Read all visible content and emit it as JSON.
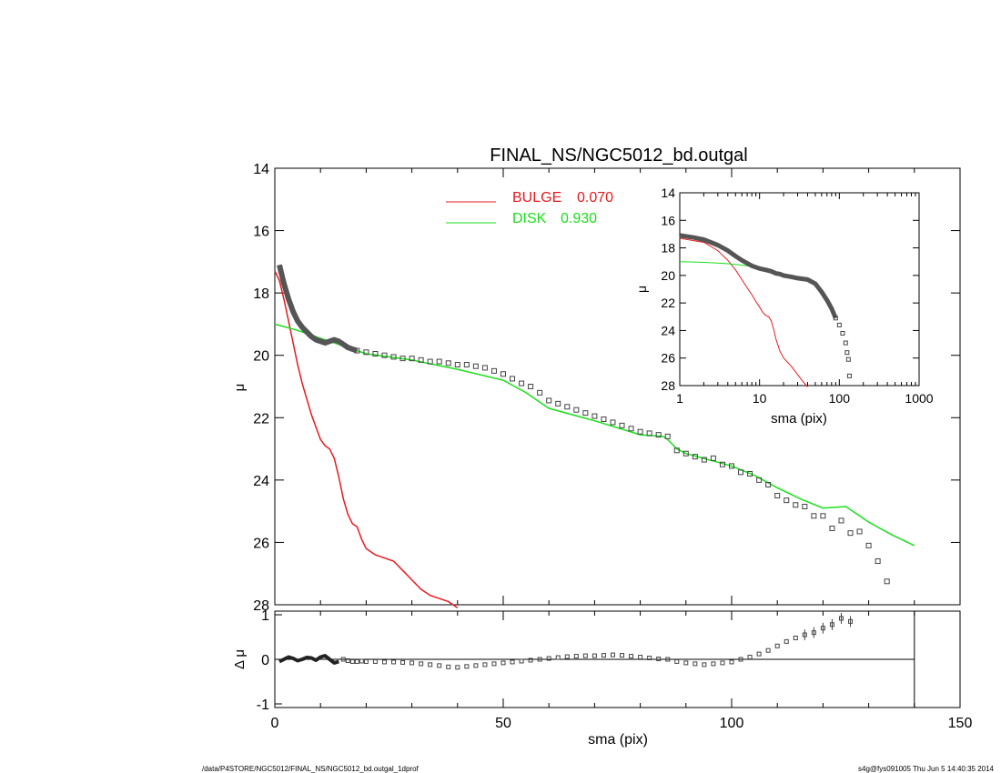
{
  "title": "FINAL_NS/NGC5012_bd.outgal",
  "footer": {
    "left": "/data/P4STORE/NGC5012/FINAL_NS/NGC5012_bd.outgal_1dprof",
    "right": "s4g@fys091005  Thu Jun  5 14:40:35 2014"
  },
  "chart_data": [
    {
      "type": "line",
      "panel": "main",
      "ylabel": "μ",
      "xlim": [
        0,
        150
      ],
      "ylim": [
        28,
        14
      ],
      "yticks": [
        14,
        16,
        18,
        20,
        22,
        24,
        26,
        28
      ],
      "legend": [
        {
          "label": "BULGE",
          "value": "0.070",
          "color": "#e8191e"
        },
        {
          "label": "DISK",
          "value": "0.930",
          "color": "#19e019"
        }
      ],
      "series": [
        {
          "name": "BULGE 0.070",
          "color": "#e8191e",
          "x": [
            0,
            1,
            2,
            3,
            4,
            5,
            6,
            7,
            8,
            9,
            10,
            11,
            12,
            13,
            14,
            15,
            16,
            17,
            18,
            19,
            20,
            22,
            24,
            26,
            28,
            30,
            32,
            34,
            36,
            38,
            40
          ],
          "y": [
            17.3,
            17.6,
            18.2,
            18.9,
            19.6,
            20.3,
            20.9,
            21.4,
            21.9,
            22.3,
            22.7,
            22.9,
            23.0,
            23.3,
            23.9,
            24.6,
            25.1,
            25.4,
            25.5,
            25.9,
            26.2,
            26.4,
            26.5,
            26.6,
            26.9,
            27.2,
            27.5,
            27.7,
            27.8,
            27.9,
            28.1
          ]
        },
        {
          "name": "DISK 0.930",
          "color": "#19e019",
          "x": [
            0,
            5,
            10,
            15,
            20,
            30,
            40,
            50,
            55,
            60,
            70,
            80,
            85,
            86,
            88,
            90,
            95,
            100,
            105,
            110,
            115,
            120,
            125,
            130,
            135,
            140
          ],
          "y": [
            19.0,
            19.2,
            19.45,
            19.7,
            19.95,
            20.15,
            20.45,
            20.8,
            21.2,
            21.7,
            22.1,
            22.55,
            22.6,
            22.7,
            23.0,
            23.15,
            23.35,
            23.55,
            23.85,
            24.25,
            24.6,
            24.9,
            24.85,
            25.35,
            25.75,
            26.1
          ]
        },
        {
          "name": "data",
          "marker": "square",
          "x": [
            18,
            20,
            22,
            24,
            26,
            28,
            30,
            32,
            34,
            36,
            38,
            40,
            42,
            44,
            46,
            48,
            50,
            52,
            54,
            56,
            58,
            60,
            62,
            64,
            66,
            68,
            70,
            72,
            74,
            76,
            78,
            80,
            82,
            84,
            86,
            88,
            90,
            92,
            94,
            96,
            98,
            100,
            102,
            104,
            106,
            108,
            110,
            112,
            114,
            116,
            118,
            120,
            122,
            124,
            126,
            128,
            130,
            132,
            134
          ],
          "y": [
            19.85,
            19.9,
            19.95,
            20.0,
            20.05,
            20.1,
            20.1,
            20.15,
            20.2,
            20.2,
            20.25,
            20.3,
            20.3,
            20.35,
            20.4,
            20.5,
            20.6,
            20.75,
            20.9,
            21.0,
            21.2,
            21.45,
            21.55,
            21.65,
            21.75,
            21.85,
            21.95,
            22.05,
            22.15,
            22.25,
            22.35,
            22.45,
            22.5,
            22.55,
            22.6,
            23.05,
            23.15,
            23.25,
            23.35,
            23.3,
            23.5,
            23.55,
            23.75,
            23.8,
            24.0,
            24.15,
            24.5,
            24.65,
            24.8,
            24.85,
            25.15,
            25.15,
            25.55,
            25.3,
            25.7,
            25.65,
            26.1,
            26.6,
            27.25
          ]
        }
      ]
    },
    {
      "type": "line",
      "panel": "inset",
      "xlabel": "sma (pix)",
      "ylabel": "μ",
      "xscale": "log",
      "xlim": [
        1,
        1000
      ],
      "ylim": [
        28,
        14
      ],
      "xticks": [
        1,
        10,
        100,
        1000
      ],
      "yticks": [
        14,
        16,
        18,
        20,
        22,
        24,
        26,
        28
      ],
      "series": [
        {
          "name": "BULGE",
          "color": "#e8191e",
          "x": [
            1,
            2,
            3,
            4,
            5,
            6,
            7,
            8,
            9,
            10,
            11,
            12,
            13,
            14,
            15,
            16,
            18,
            20,
            25,
            30,
            35,
            40
          ],
          "y": [
            17.3,
            17.6,
            18.2,
            18.9,
            19.6,
            20.3,
            20.9,
            21.4,
            21.9,
            22.3,
            22.7,
            22.9,
            23.0,
            23.3,
            23.9,
            24.6,
            25.5,
            26.0,
            26.6,
            27.2,
            27.7,
            28.1
          ]
        },
        {
          "name": "DISK",
          "color": "#19e019",
          "x": [
            1,
            2,
            3,
            4,
            5,
            6,
            8,
            10
          ],
          "y": [
            19.0,
            19.05,
            19.1,
            19.15,
            19.2,
            19.25,
            19.35,
            19.45
          ]
        },
        {
          "name": "data",
          "marker": "square",
          "x": [
            1,
            1.5,
            2,
            3,
            4,
            5,
            6,
            8,
            10,
            12,
            14,
            16,
            18,
            20,
            25,
            30,
            40,
            50,
            60,
            70,
            80,
            90,
            100,
            110,
            120,
            125,
            130,
            134
          ],
          "y": [
            17.1,
            17.25,
            17.4,
            17.8,
            18.2,
            18.6,
            18.9,
            19.3,
            19.5,
            19.6,
            19.7,
            19.85,
            19.9,
            20.0,
            20.1,
            20.2,
            20.3,
            20.6,
            21.2,
            21.8,
            22.4,
            23.1,
            23.6,
            24.2,
            24.9,
            25.6,
            26.1,
            27.3
          ]
        }
      ]
    },
    {
      "type": "scatter",
      "panel": "residual",
      "xlabel": "sma (pix)",
      "ylabel": "Δ μ",
      "xlim": [
        0,
        150
      ],
      "ylim": [
        -1,
        1
      ],
      "xticks": [
        0,
        50,
        100,
        150
      ],
      "yticks": [
        -1,
        0,
        1
      ],
      "series": [
        {
          "name": "residual",
          "marker": "square",
          "x": [
            1,
            2,
            3,
            4,
            5,
            6,
            7,
            8,
            9,
            10,
            11,
            12,
            13,
            14,
            15,
            16,
            17,
            18,
            19,
            20,
            22,
            24,
            26,
            28,
            30,
            32,
            34,
            36,
            38,
            40,
            42,
            44,
            46,
            48,
            50,
            52,
            54,
            56,
            58,
            60,
            62,
            64,
            66,
            68,
            70,
            72,
            74,
            76,
            78,
            80,
            82,
            84,
            86,
            88,
            90,
            92,
            94,
            96,
            98,
            100,
            102,
            104,
            106,
            108,
            110,
            112,
            114,
            116,
            118,
            120,
            122,
            124,
            126
          ],
          "y": [
            -0.05,
            0.0,
            0.05,
            0.02,
            -0.03,
            0.0,
            0.04,
            0.03,
            -0.02,
            0.05,
            0.08,
            0.0,
            -0.08,
            -0.05,
            0.0,
            -0.03,
            -0.05,
            -0.05,
            -0.04,
            -0.05,
            -0.05,
            -0.06,
            -0.06,
            -0.07,
            -0.08,
            -0.1,
            -0.12,
            -0.14,
            -0.17,
            -0.18,
            -0.16,
            -0.14,
            -0.12,
            -0.1,
            -0.08,
            -0.06,
            -0.04,
            -0.02,
            0.0,
            0.02,
            0.04,
            0.06,
            0.07,
            0.08,
            0.08,
            0.09,
            0.1,
            0.09,
            0.07,
            0.05,
            0.03,
            0.01,
            0.0,
            -0.05,
            -0.08,
            -0.1,
            -0.12,
            -0.1,
            -0.08,
            -0.06,
            0.0,
            0.05,
            0.12,
            0.2,
            0.3,
            0.4,
            0.48,
            0.55,
            0.6,
            0.7,
            0.78,
            0.92,
            0.85
          ]
        }
      ]
    }
  ]
}
